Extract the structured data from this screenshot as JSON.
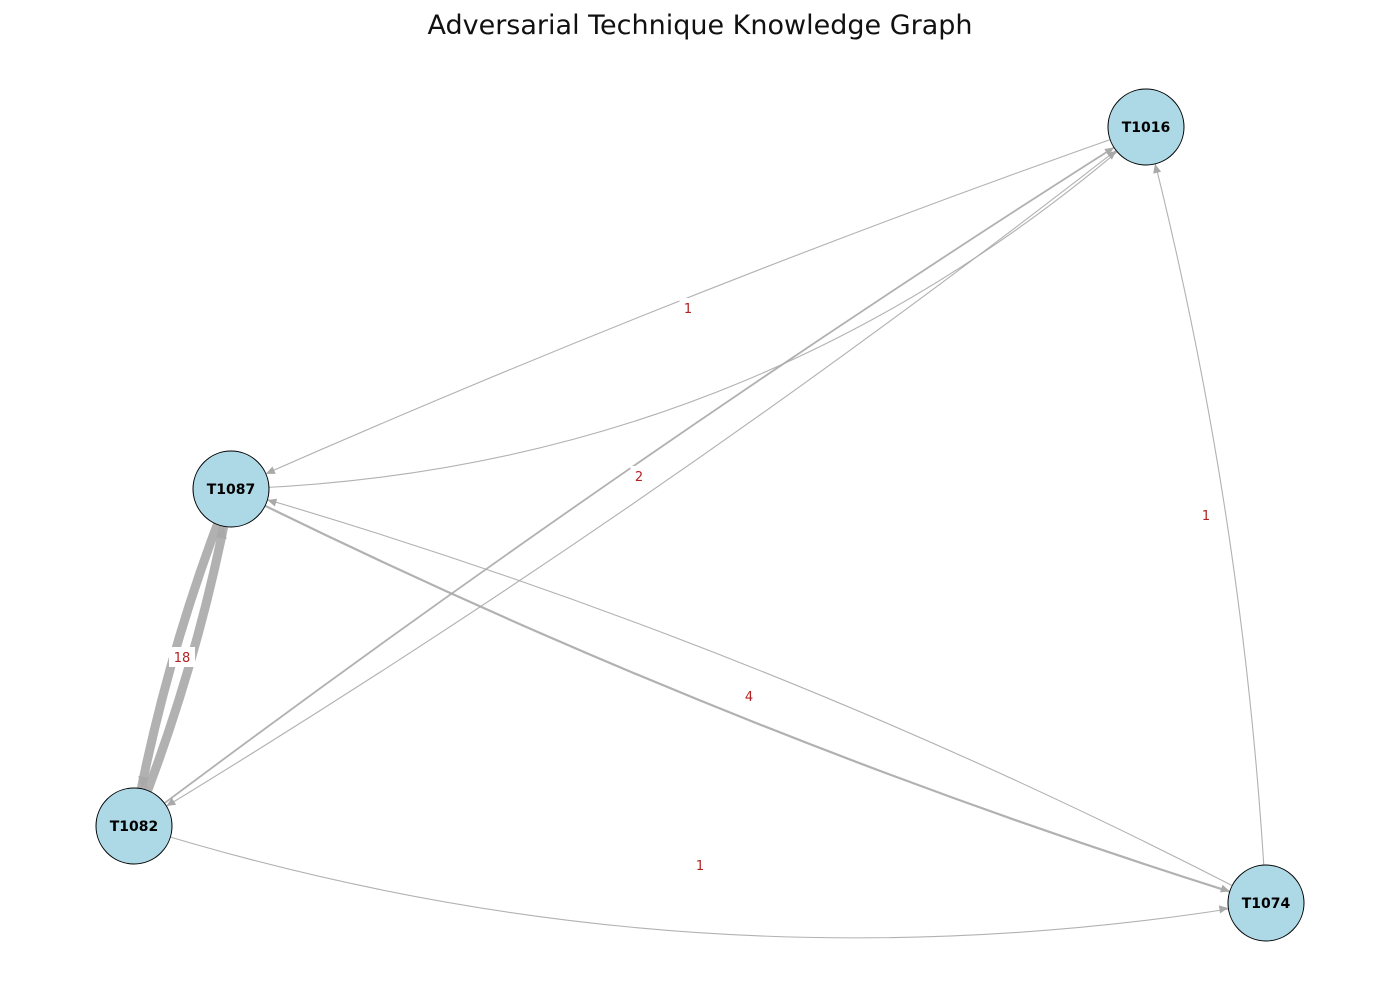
{
  "title": "Adversarial Technique Knowledge Graph",
  "colors": {
    "node_fill": "#add8e6",
    "node_stroke": "#000000",
    "edge": "#a9a9a9",
    "edge_label": "#b22222"
  },
  "nodes": [
    {
      "id": "T1016",
      "label": "T1016"
    },
    {
      "id": "T1087",
      "label": "T1087"
    },
    {
      "id": "T1082",
      "label": "T1082"
    },
    {
      "id": "T1074",
      "label": "T1074"
    }
  ],
  "edges": [
    {
      "source": "T1087",
      "target": "T1016",
      "weight": 1
    },
    {
      "source": "T1016",
      "target": "T1087",
      "weight": 1
    },
    {
      "source": "T1082",
      "target": "T1016",
      "weight": 2
    },
    {
      "source": "T1016",
      "target": "T1082",
      "weight": 1
    },
    {
      "source": "T1074",
      "target": "T1016",
      "weight": 1
    },
    {
      "source": "T1082",
      "target": "T1087",
      "weight": 18
    },
    {
      "source": "T1087",
      "target": "T1082",
      "weight": 18
    },
    {
      "source": "T1087",
      "target": "T1074",
      "weight": 4
    },
    {
      "source": "T1074",
      "target": "T1087",
      "weight": 1
    },
    {
      "source": "T1082",
      "target": "T1074",
      "weight": 1
    }
  ],
  "edge_labels": [
    {
      "text": "1",
      "edge": "T1087-T1016"
    },
    {
      "text": "2",
      "edge": "T1082-T1016"
    },
    {
      "text": "1",
      "edge": "T1074-T1016"
    },
    {
      "text": "18",
      "edge": "T1082-T1087"
    },
    {
      "text": "4",
      "edge": "T1087-T1074"
    },
    {
      "text": "1",
      "edge": "T1082-T1074"
    }
  ]
}
